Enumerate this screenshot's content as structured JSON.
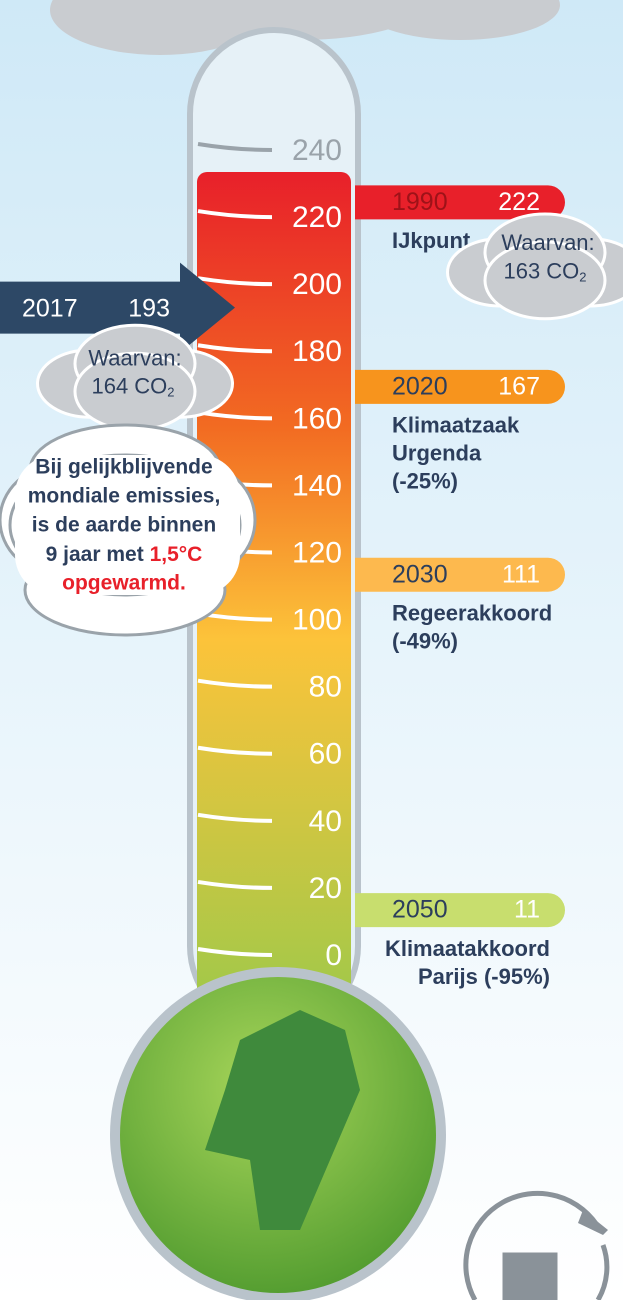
{
  "scale": {
    "min": 0,
    "max": 240,
    "ticks": [
      0,
      20,
      40,
      60,
      80,
      100,
      120,
      140,
      160,
      180,
      200,
      220,
      240
    ]
  },
  "current": {
    "year": "2017",
    "value": 193,
    "note": {
      "label": "Waarvan:",
      "amount": "164 CO",
      "sub": "2"
    }
  },
  "markers": [
    {
      "year": "1990",
      "value": 222,
      "color": "#e8202a",
      "year_color": "#9e1218",
      "lines": [
        "IJkpunt"
      ],
      "note": {
        "label": "Waarvan:",
        "amount": "163 CO",
        "sub": "2"
      }
    },
    {
      "year": "2020",
      "value": 167,
      "color": "#f7941d",
      "year_color": "#2c3e5c",
      "lines": [
        "Klimaatzaak",
        "Urgenda",
        "(-25%)"
      ]
    },
    {
      "year": "2030",
      "value": 111,
      "color": "#fdb94e",
      "year_color": "#2c3e5c",
      "lines": [
        "Regeerakkoord",
        "(-49%)"
      ]
    },
    {
      "year": "2050",
      "value": 11,
      "color": "#c8de6e",
      "year_color": "#2c3e5c",
      "lines": [
        "Klimaatakkoord",
        "Parijs (-95%)"
      ]
    }
  ],
  "warning": {
    "lines": [
      "Bij gelijkblijvende",
      "mondiale emissies,",
      "is de aarde binnen"
    ],
    "line4": "9 jaar met ",
    "highlight": "1,5°C",
    "line5": "opgewarmd."
  }
}
